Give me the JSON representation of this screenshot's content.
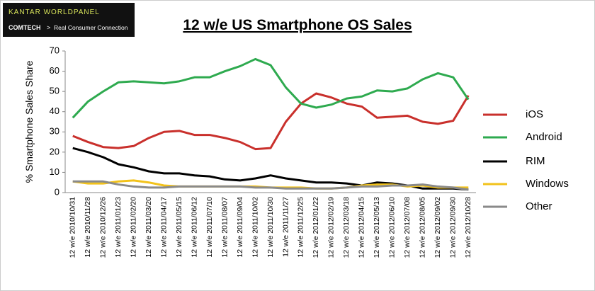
{
  "header": {
    "brand": "KANTAR WORLDPANEL",
    "division": "COMTECH",
    "tagline": "Real Consumer Connection"
  },
  "chart_data": {
    "type": "line",
    "title": "12 w/e US Smartphone OS Sales",
    "y_label": "% Smartphone Sales Share",
    "categories": [
      "12 w/e 2010/10/31",
      "12 w/e 2010/11/28",
      "12 w/e 2010/12/26",
      "12 w/e 2011/01/23",
      "12 w/e 2011/02/20",
      "12 w/e 2011/03/20",
      "12 w/e 2011/04/17",
      "12 w/e 2011/05/15",
      "12 w/e 2011/06/12",
      "12 w/e 2011/07/10",
      "12 w/e 2011/08/07",
      "12 w/e 2011/09/04",
      "12 w/e 2011/10/02",
      "12 w/e 2011/10/30",
      "12 w/e 2011/11/27",
      "12 w/e 2011/12/25",
      "12 w/e 2012/01/22",
      "12 w/e 2012/02/19",
      "12 w/e 2012/03/18",
      "12 w/e 2012/04/15",
      "12 w/e 2012/05/13",
      "12 w/e 2012/06/10",
      "12 w/e 2012/07/08",
      "12 w/e 2012/08/05",
      "12 w/e 2012/09/02",
      "12 w/e 2012/09/30",
      "12 w/e 2012/10/28"
    ],
    "series": [
      {
        "name": "iOS",
        "color": "#c9302c",
        "values": [
          28,
          25,
          22.5,
          22,
          23,
          27,
          30,
          30.5,
          28.5,
          28.5,
          27,
          25,
          21.5,
          22,
          35,
          44,
          49,
          47,
          44,
          42.5,
          37,
          37.5,
          38,
          35,
          34,
          35.5,
          48
        ]
      },
      {
        "name": "Android",
        "color": "#2eaa4f",
        "values": [
          37,
          45,
          50,
          54.5,
          55,
          54.5,
          54,
          55,
          57,
          57,
          60,
          62.5,
          66,
          63,
          52,
          44,
          42,
          43.5,
          46.5,
          47.5,
          50.5,
          50,
          51.5,
          56,
          59,
          57,
          46
        ]
      },
      {
        "name": "RIM",
        "color": "#000000",
        "values": [
          22,
          20,
          17.5,
          14,
          12.5,
          10.5,
          9.5,
          9.5,
          8.5,
          8,
          6.5,
          6,
          7,
          8.5,
          7,
          6,
          5,
          5,
          4.5,
          3.5,
          5,
          4.5,
          3.5,
          2,
          2,
          2,
          1.5
        ]
      },
      {
        "name": "Windows",
        "color": "#f2c21a",
        "values": [
          5.5,
          4.5,
          4.5,
          5.5,
          6,
          5,
          3.5,
          3,
          3,
          3,
          3,
          3,
          3,
          2.5,
          2.5,
          2.5,
          2,
          2,
          2.5,
          3.5,
          4,
          4,
          3,
          3.5,
          2.5,
          2.5,
          2.5
        ]
      },
      {
        "name": "Other",
        "color": "#8a8a8a",
        "values": [
          5.5,
          5.5,
          5.5,
          4,
          3,
          2.5,
          2.5,
          3,
          3,
          3,
          3,
          3,
          2.5,
          2.5,
          2,
          2,
          2,
          2,
          2.5,
          3,
          3,
          3.5,
          3.5,
          4,
          3,
          2.5,
          1.5
        ]
      }
    ],
    "ylim": [
      0,
      70
    ],
    "yticks": [
      0,
      10,
      20,
      30,
      40,
      50,
      60,
      70
    ],
    "legend": "right"
  }
}
